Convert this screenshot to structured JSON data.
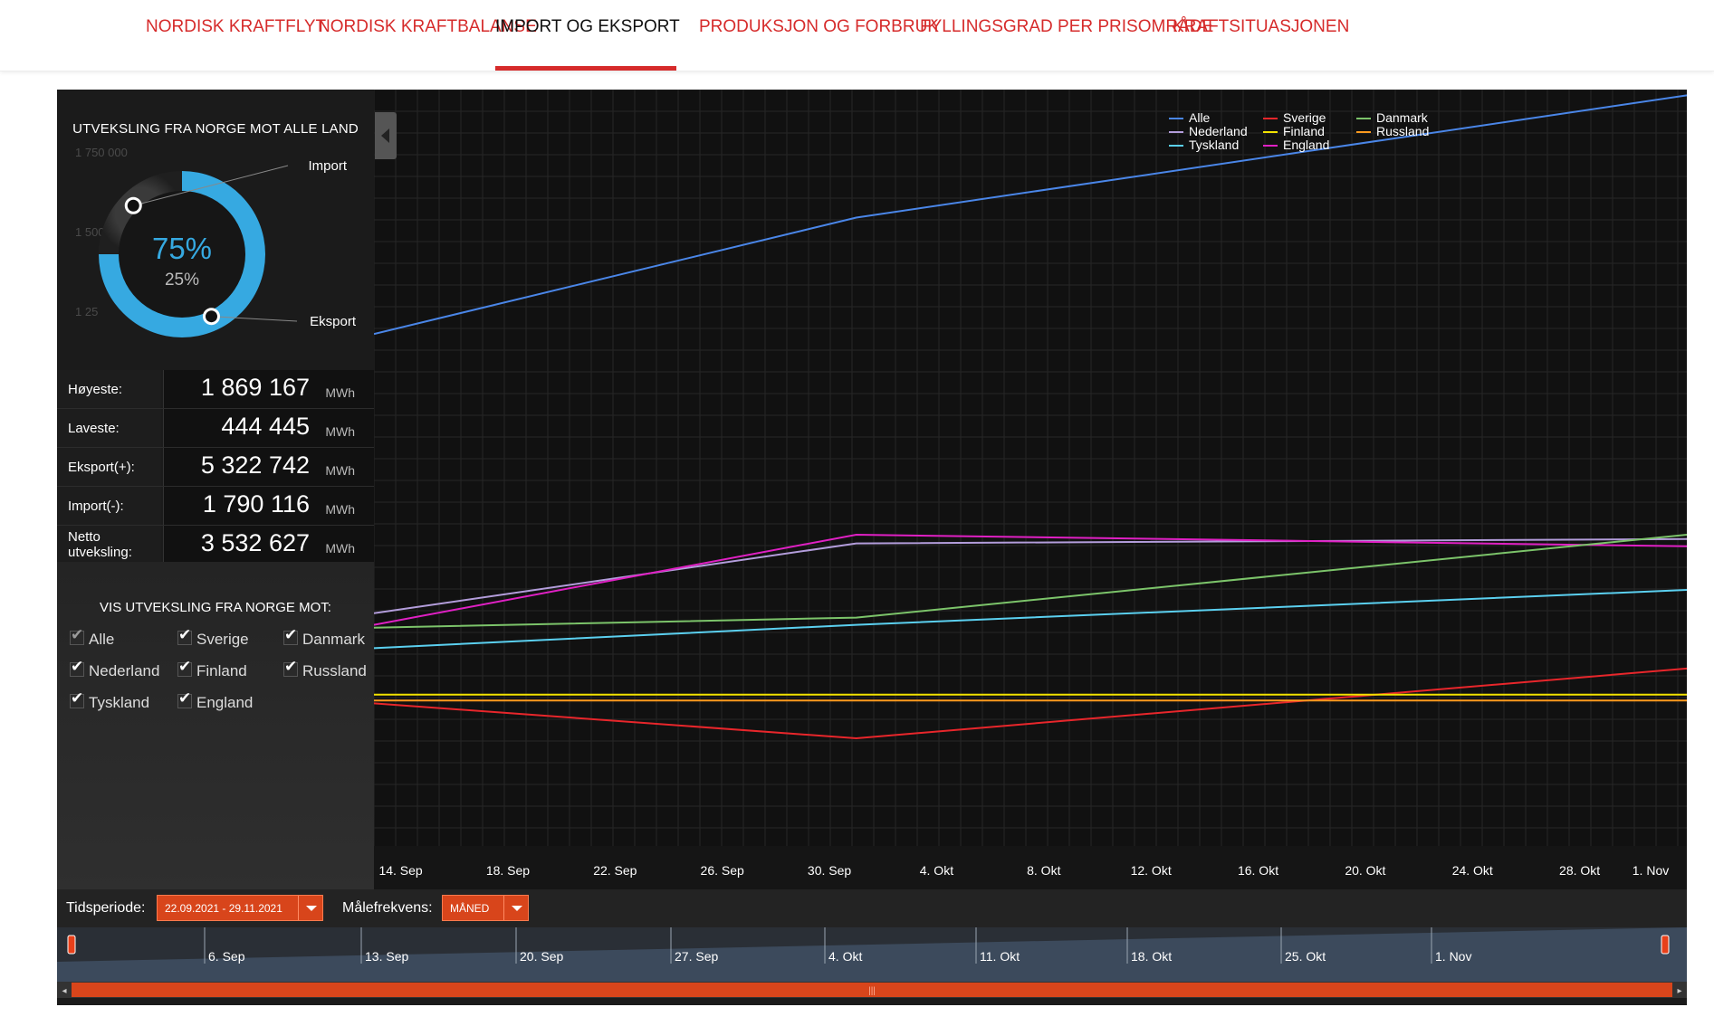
{
  "nav": {
    "tabs": [
      {
        "label": "NORDISK KRAFTFLYT",
        "active": false
      },
      {
        "label": "NORDISK KRAFTBALANSE",
        "active": false
      },
      {
        "label": "IMPORT OG EKSPORT",
        "active": true
      },
      {
        "label": "PRODUKSJON OG FORBRUK",
        "active": false
      },
      {
        "label": "FYLLINGSGRAD PER PRISOMRÅDE",
        "active": false
      },
      {
        "label": "KRAFTSITUASJONEN",
        "active": false
      }
    ]
  },
  "donut": {
    "title": "UTVEKSLING FRA NORGE MOT ALLE LAND",
    "export_percent_label": "75%",
    "import_percent_label": "25%",
    "import_label": "Import",
    "export_label": "Eksport",
    "export_share": 0.75,
    "import_share": 0.25,
    "ghost_ticks": [
      "1 750 000",
      "1 500 0",
      "1 25"
    ],
    "colors": {
      "export": "#36a9e1",
      "import": "#2a2a2a",
      "center_big": "#36a9e1"
    }
  },
  "stats": {
    "unit": "MWh",
    "rows": [
      {
        "label": "Høyeste:",
        "value": "1 869 167"
      },
      {
        "label": "Laveste:",
        "value": "444 445"
      },
      {
        "label": "Eksport(+):",
        "value": "5 322 742"
      },
      {
        "label": "Import(-):",
        "value": "1 790 116"
      },
      {
        "label": "Netto utveksling:",
        "value": "3 532 627"
      }
    ]
  },
  "filters": {
    "title": "VIS UTVEKSLING FRA NORGE MOT:",
    "items": [
      {
        "label": "Alle",
        "checked": true,
        "dim": true
      },
      {
        "label": "Sverige",
        "checked": true,
        "dim": false
      },
      {
        "label": "Danmark",
        "checked": true,
        "dim": false
      },
      {
        "label": "Nederland",
        "checked": true,
        "dim": false
      },
      {
        "label": "Finland",
        "checked": true,
        "dim": false
      },
      {
        "label": "Russland",
        "checked": true,
        "dim": false
      },
      {
        "label": "Tyskland",
        "checked": true,
        "dim": false
      },
      {
        "label": "England",
        "checked": true,
        "dim": false
      }
    ]
  },
  "controls": {
    "period_label": "Tidsperiode:",
    "period_value": "22.09.2021 - 29.11.2021",
    "freq_label": "Målefrekvens:",
    "freq_value": "MÅNED"
  },
  "navigator": {
    "ticks": [
      "6. Sep",
      "13. Sep",
      "20. Sep",
      "27. Sep",
      "4. Okt",
      "11. Okt",
      "18. Okt",
      "25. Okt",
      "1. Nov"
    ],
    "colors": {
      "fill": "#3c4a5c",
      "scrollbar": "#d8451b"
    }
  },
  "chart_data": {
    "type": "line",
    "x_ticks": [
      "14. Sep",
      "18. Sep",
      "22. Sep",
      "26. Sep",
      "30. Sep",
      "4. Okt",
      "8. Okt",
      "12. Okt",
      "16. Okt",
      "20. Okt",
      "24. Okt",
      "28. Okt",
      "1. Nov"
    ],
    "x": [
      "2021-09-13",
      "2021-10-01",
      "2021-11-01"
    ],
    "xlim": [
      "2021-09-13",
      "2021-11-01"
    ],
    "ylim": [
      -700000,
      1900000
    ],
    "grid": true,
    "legend_position": "top-right",
    "series": [
      {
        "name": "Alle",
        "color": "#4a86e8",
        "values": [
          1060000,
          1460000,
          1880000
        ]
      },
      {
        "name": "Nederland",
        "color": "#b39ddb",
        "values": [
          100000,
          340000,
          355000
        ]
      },
      {
        "name": "Tyskland",
        "color": "#5bd0f0",
        "values": [
          -20000,
          60000,
          180000
        ]
      },
      {
        "name": "Sverige",
        "color": "#e8262b",
        "values": [
          -210000,
          -330000,
          -90000
        ]
      },
      {
        "name": "Finland",
        "color": "#f2e200",
        "values": [
          -180000,
          -180000,
          -180000
        ]
      },
      {
        "name": "England",
        "color": "#e020c4",
        "values": [
          60000,
          370000,
          330000
        ]
      },
      {
        "name": "Danmark",
        "color": "#7cc46a",
        "values": [
          50000,
          85000,
          370000
        ]
      },
      {
        "name": "Russland",
        "color": "#ff9a1e",
        "values": [
          -200000,
          -200000,
          -200000
        ]
      }
    ]
  }
}
